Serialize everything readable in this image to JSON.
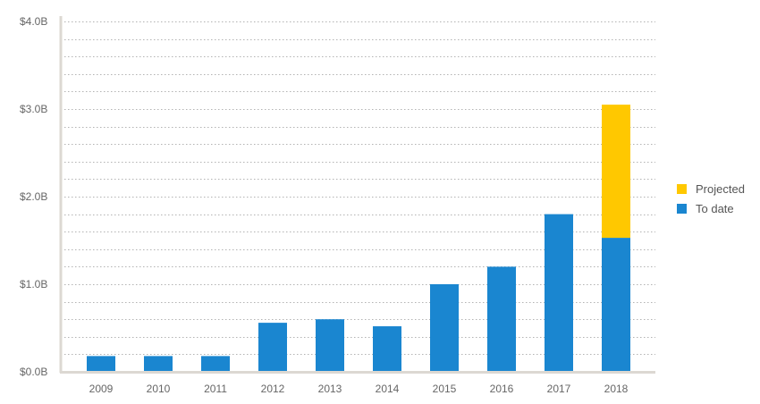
{
  "chart_data": {
    "type": "bar",
    "stacked": true,
    "categories": [
      "2009",
      "2010",
      "2011",
      "2012",
      "2013",
      "2014",
      "2015",
      "2016",
      "2017",
      "2018"
    ],
    "series": [
      {
        "name": "To date",
        "color": "#1a86d0",
        "values": [
          0.18,
          0.18,
          0.18,
          0.56,
          0.6,
          0.52,
          1.0,
          1.2,
          1.8,
          1.53
        ]
      },
      {
        "name": "Projected",
        "color": "#ffc800",
        "values": [
          0,
          0,
          0,
          0,
          0,
          0,
          0,
          0,
          0,
          1.52
        ]
      }
    ],
    "title": "",
    "xlabel": "",
    "ylabel": "",
    "ylim": [
      0,
      4
    ],
    "y_ticks": [
      0,
      1,
      2,
      3,
      4
    ],
    "y_tick_labels": [
      "$0.0B",
      "$1.0B",
      "$2.0B",
      "$3.0B",
      "$4.0B"
    ],
    "minor_gridlines_per_major": 5,
    "grid": true,
    "grid_style": "dotted",
    "legend_position": "right",
    "legend_order": [
      "Projected",
      "To date"
    ]
  },
  "colors": {
    "axis": "#dcd8d2",
    "grid": "#9a9a9a",
    "tick_text": "#666666",
    "legend_text": "#555555"
  }
}
